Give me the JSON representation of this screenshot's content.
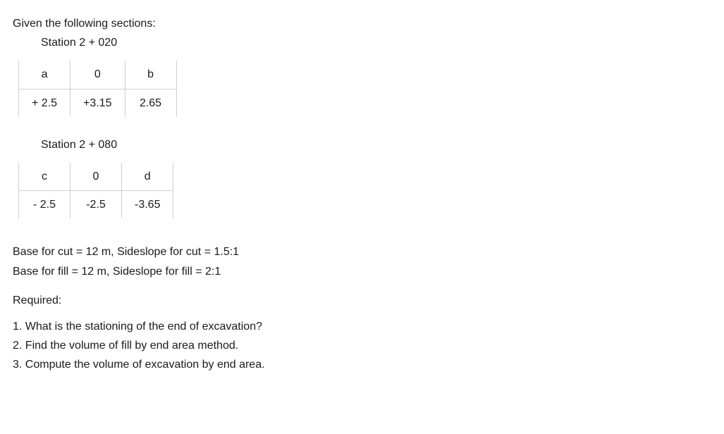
{
  "intro": "Given the following sections:",
  "station1": {
    "label": "Station   2 + 020",
    "row1": [
      "a",
      "0",
      "b"
    ],
    "row2": [
      "+ 2.5",
      "+3.15",
      "2.65"
    ]
  },
  "station2": {
    "label": "Station   2 + 080",
    "row1": [
      "c",
      "0",
      "d"
    ],
    "row2": [
      "- 2.5",
      "-2.5",
      "-3.65"
    ]
  },
  "params": {
    "line1": "Base for cut = 12 m, Sideslope for cut = 1.5:1",
    "line2": "Base for fill = 12 m, Sideslope for fill = 2:1"
  },
  "required_label": "Required:",
  "questions": {
    "q1": "1. What is the stationing of the end of excavation?",
    "q2": "2. Find the volume of fill by end area method.",
    "q3": "3. Compute the volume of excavation by end area."
  },
  "colors": {
    "text": "#1a1a1a",
    "border": "#cfcfcf",
    "background": "#ffffff"
  },
  "font_size": 16
}
